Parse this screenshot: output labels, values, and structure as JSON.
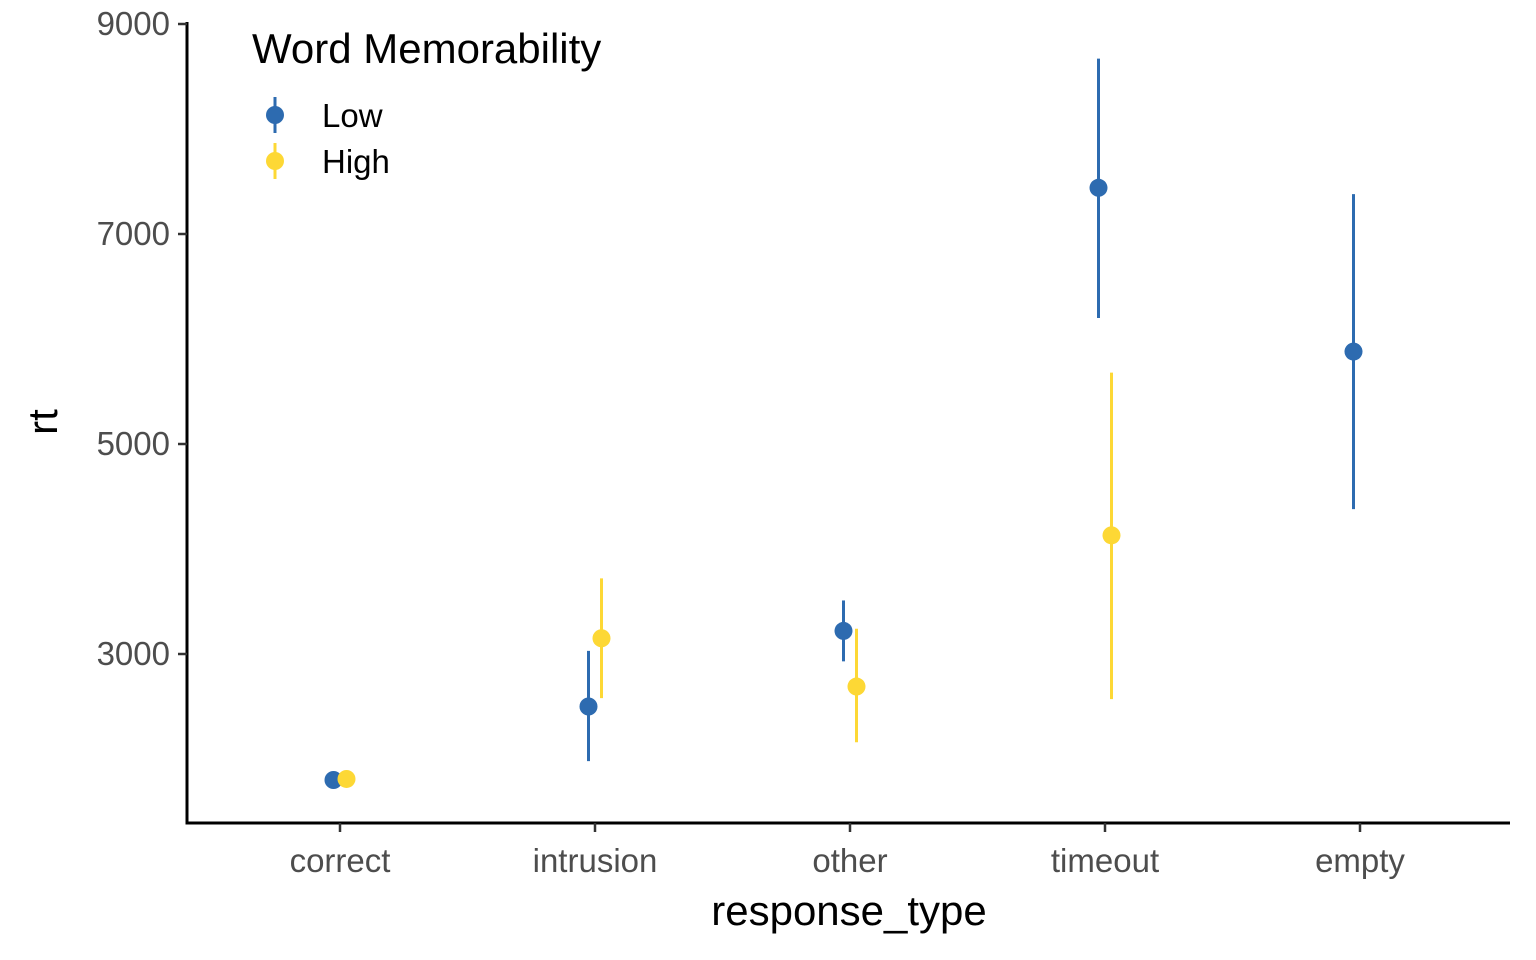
{
  "chart_data": {
    "type": "scatter",
    "title": "",
    "xlabel": "response_type",
    "ylabel": "rt",
    "categories": [
      "correct",
      "intrusion",
      "other",
      "timeout",
      "empty"
    ],
    "ylim": [
      1400,
      9000
    ],
    "yticks": [
      3000,
      5000,
      7000,
      9000
    ],
    "grid": false,
    "legend": {
      "title": "Word Memorability",
      "position": "top-left"
    },
    "series": [
      {
        "name": "Low",
        "color": "#2d6bb0",
        "points": [
          {
            "category": "correct",
            "y": 1800,
            "ymin": 1800,
            "ymax": 1800
          },
          {
            "category": "intrusion",
            "y": 2500,
            "ymin": 1980,
            "ymax": 3030
          },
          {
            "category": "other",
            "y": 3220,
            "ymin": 2930,
            "ymax": 3510
          },
          {
            "category": "timeout",
            "y": 7440,
            "ymin": 6200,
            "ymax": 8670
          },
          {
            "category": "empty",
            "y": 5880,
            "ymin": 4380,
            "ymax": 7380
          }
        ]
      },
      {
        "name": "High",
        "color": "#fdd835",
        "points": [
          {
            "category": "correct",
            "y": 1810,
            "ymin": 1810,
            "ymax": 1810
          },
          {
            "category": "intrusion",
            "y": 3150,
            "ymin": 2580,
            "ymax": 3720
          },
          {
            "category": "other",
            "y": 2690,
            "ymin": 2160,
            "ymax": 3240
          },
          {
            "category": "timeout",
            "y": 4130,
            "ymin": 2570,
            "ymax": 5680
          }
        ]
      }
    ]
  }
}
